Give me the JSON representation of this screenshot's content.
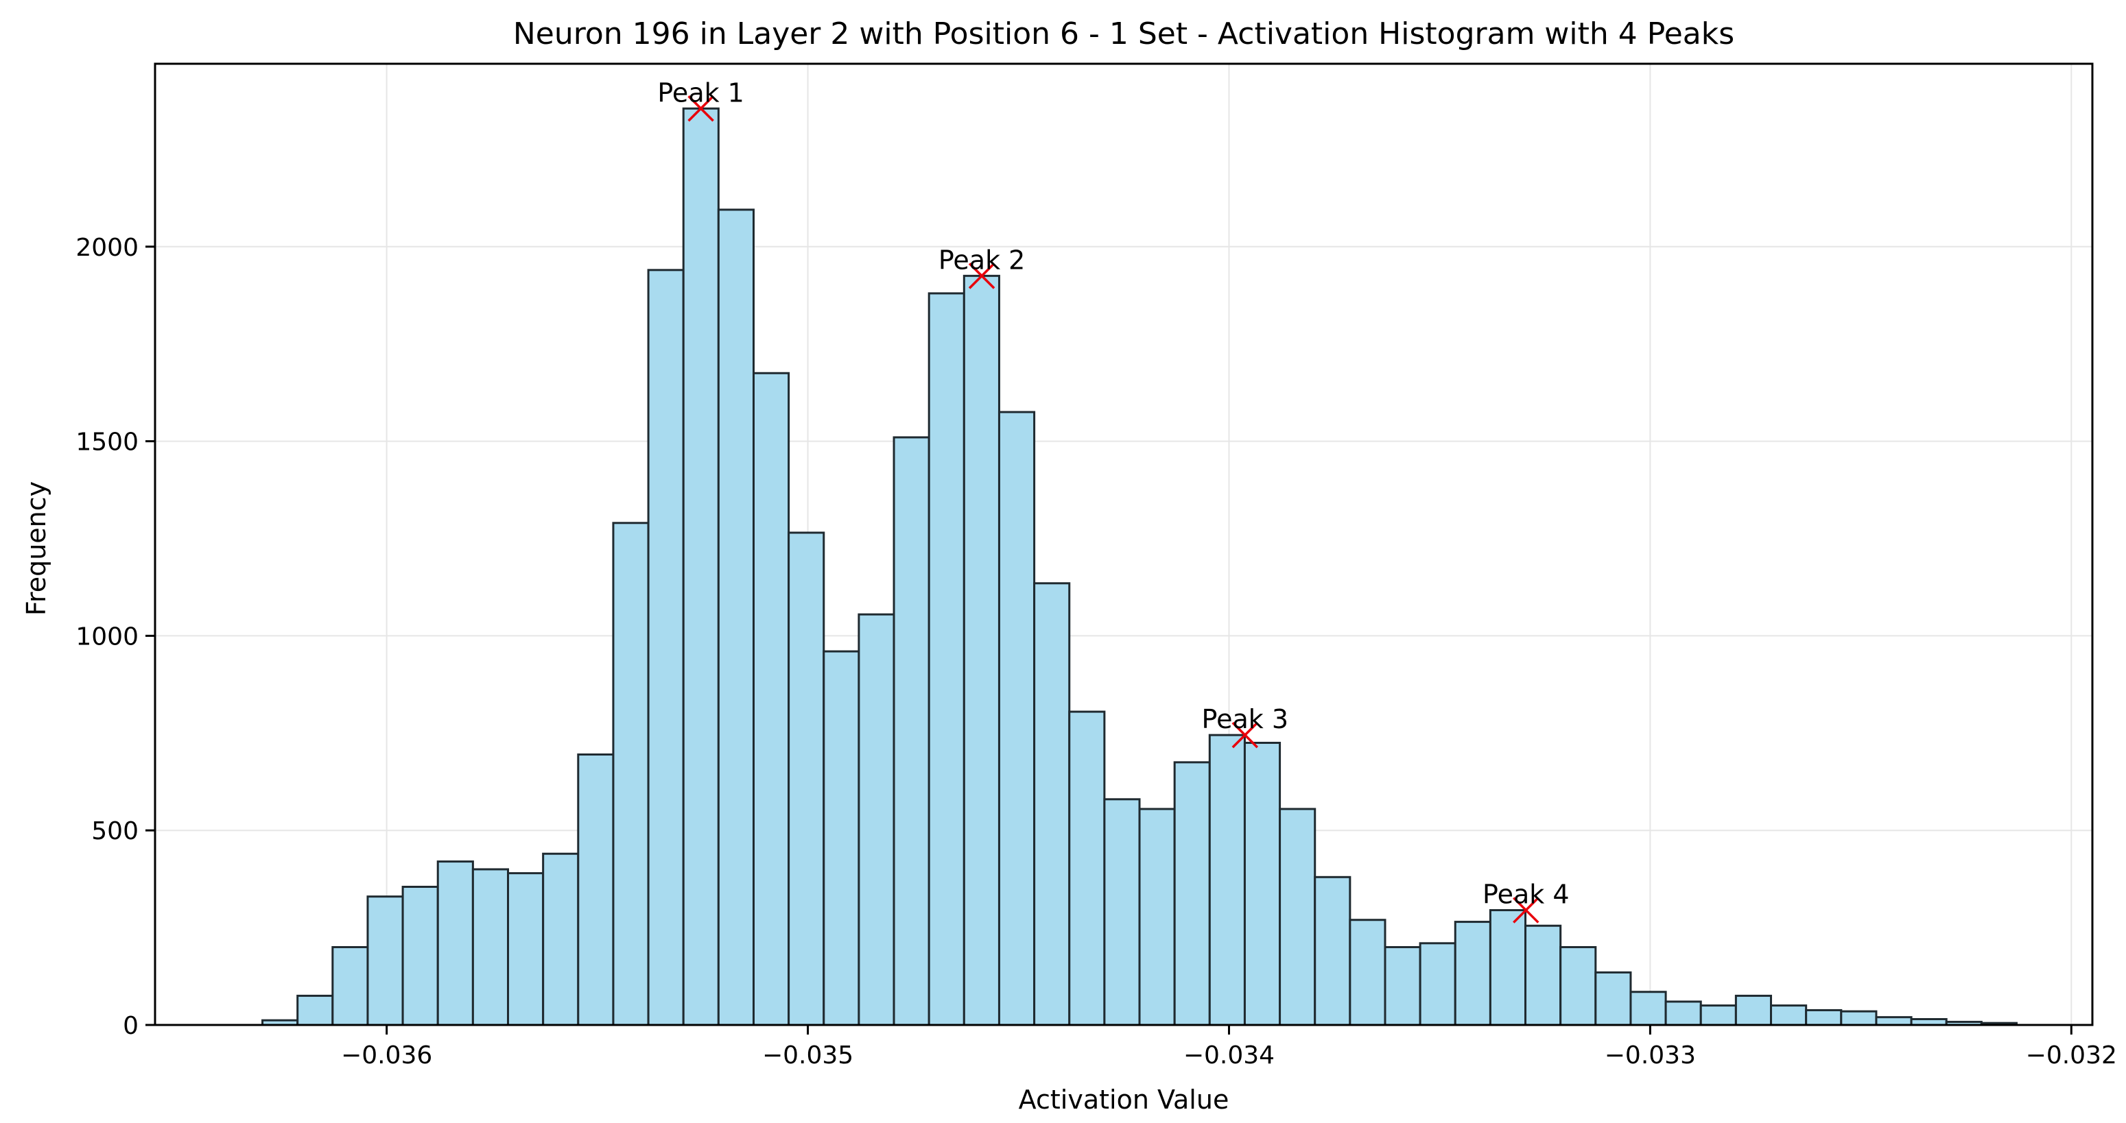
{
  "chart_data": {
    "type": "histogram",
    "title": "Neuron 196 in Layer 2 with Position 6 - 1 Set - Activation Histogram with 4 Peaks",
    "xlabel": "Activation Value",
    "ylabel": "Frequency",
    "xlim": [
      -0.03655,
      -0.03195
    ],
    "ylim": [
      0,
      2470
    ],
    "grid": true,
    "x_tick_values": [
      -0.036,
      -0.035,
      -0.034,
      -0.033,
      -0.032
    ],
    "x_tick_labels": [
      "−0.036",
      "−0.035",
      "−0.034",
      "−0.033",
      "−0.032"
    ],
    "y_tick_values": [
      0,
      500,
      1000,
      1500,
      2000
    ],
    "y_tick_labels": [
      "0",
      "500",
      "1000",
      "1500",
      "2000"
    ],
    "bin_start": -0.036295,
    "bin_width": 8.33e-05,
    "values": [
      12,
      75,
      200,
      330,
      355,
      420,
      400,
      390,
      440,
      695,
      1290,
      1940,
      2355,
      2095,
      1675,
      1265,
      960,
      1055,
      1510,
      1880,
      1925,
      1575,
      1135,
      805,
      580,
      555,
      675,
      745,
      725,
      555,
      380,
      270,
      200,
      210,
      265,
      295,
      255,
      200,
      135,
      85,
      60,
      50,
      75,
      50,
      38,
      35,
      20,
      15,
      8,
      5
    ],
    "bar_color": "#a9dbef",
    "edge_color": "#1f2a30",
    "peak_marker_color": "#e8000b",
    "peaks": [
      {
        "label": "Peak 1",
        "x": -0.035254,
        "y": 2355
      },
      {
        "label": "Peak 2",
        "x": -0.034587,
        "y": 1925
      },
      {
        "label": "Peak 3",
        "x": -0.033962,
        "y": 745
      },
      {
        "label": "Peak 4",
        "x": -0.033295,
        "y": 295
      }
    ]
  }
}
